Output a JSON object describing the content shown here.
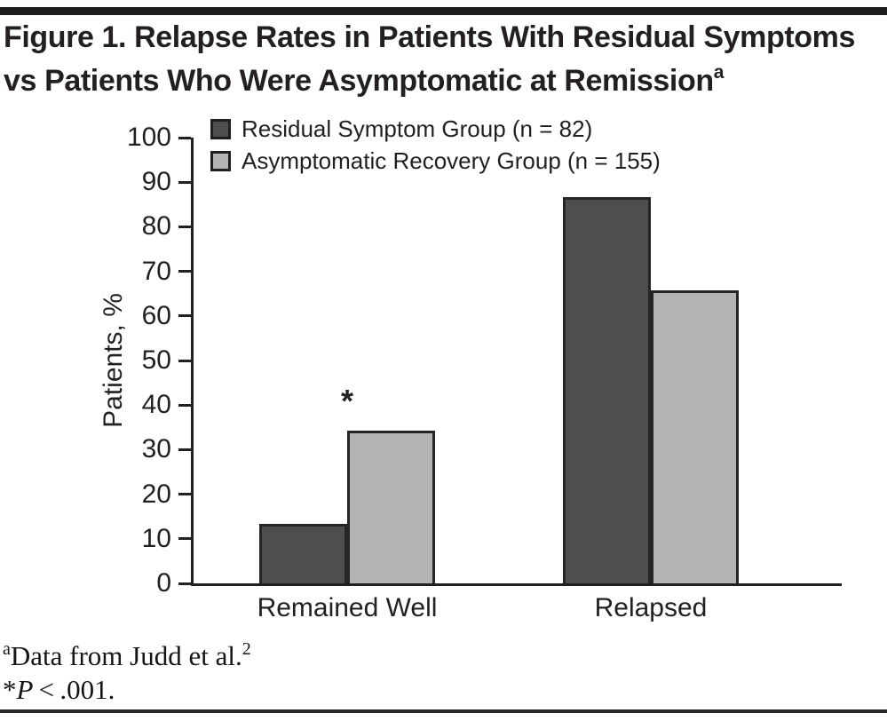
{
  "figure": {
    "title": "Figure 1. Relapse Rates in Patients With Residual Symptoms vs Patients Who Were Asymptomatic at Remission",
    "title_superscript": "a"
  },
  "chart_data": {
    "type": "bar",
    "categories": [
      "Remained Well",
      "Relapsed"
    ],
    "series": [
      {
        "name": "Residual Symptom Group (n = 82)",
        "color": "#4f4d4e",
        "values": [
          13.4,
          86.6
        ]
      },
      {
        "name": "Asymptomatic Recovery Group (n = 155)",
        "color": "#b5b3b4",
        "values": [
          34.2,
          65.8
        ]
      }
    ],
    "ylabel": "Patients, %",
    "xlabel": "",
    "ylim": [
      0,
      100
    ],
    "ytick_step": 10,
    "grid": false,
    "legend_position": "top-left",
    "annotation": {
      "text": "*",
      "category": "Remained Well",
      "series": "Asymptomatic Recovery Group (n = 155)"
    },
    "colors": {
      "axis": "#231f20",
      "bar_border": "#262424"
    }
  },
  "footnotes": {
    "note1": {
      "sup_prefix": "a",
      "text": "Data from Judd et al.",
      "sup_ref": "2"
    },
    "note2": {
      "star": "*",
      "p": "P",
      "rest": " < .001."
    }
  }
}
